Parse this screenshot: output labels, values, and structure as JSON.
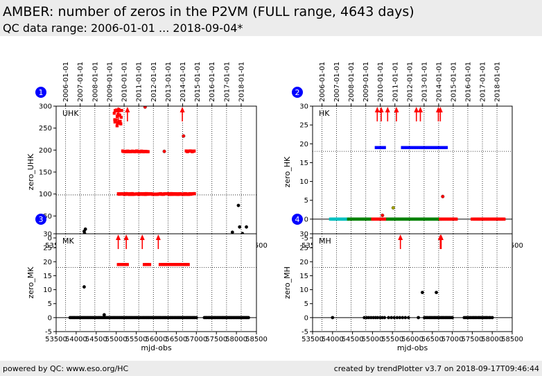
{
  "header": {
    "title": "AMBER: number of zeros in the P2VM (FULL range, 4643 days)",
    "subtitle": "QC data range: 2006-01-01 ... 2018-09-04*"
  },
  "footer": {
    "left": "powered by QC: www.eso.org/HC",
    "right": "created by trendPlotter v3.7 on 2018-09-17T09:46:44"
  },
  "colors": {
    "black": "#000000",
    "red": "#ff0000",
    "blue": "#0000ff",
    "cyan": "#00c0c0",
    "green": "#008000",
    "olive": "#a0a000",
    "badge": "#0000ff"
  },
  "chart_data": [
    {
      "type": "scatter",
      "number": "1",
      "label": "UHK",
      "xlabel": "mjd-obs",
      "ylabel": "zero_UHK",
      "xlim": [
        53500,
        58500
      ],
      "ylim": [
        0,
        300
      ],
      "xticks": [
        53500,
        54000,
        54500,
        55000,
        55500,
        56000,
        56500,
        57000,
        57500,
        58000,
        58500
      ],
      "yticks": [
        0,
        50,
        100,
        150,
        200,
        250,
        300
      ],
      "top_ticks": [
        "2006-01-01",
        "2007-01-01",
        "2008-01-01",
        "2009-01-01",
        "2010-01-01",
        "2011-01-01",
        "2012-01-01",
        "2013-01-01",
        "2014-01-01",
        "2015-01-01",
        "2016-01-01",
        "2017-01-01",
        "2018-01-01"
      ],
      "top_tick_mjd": [
        53736,
        54101,
        54466,
        54832,
        55197,
        55562,
        55927,
        56293,
        56658,
        57023,
        57388,
        57754,
        58119
      ],
      "hline": 98,
      "segments": [
        {
          "color": "black",
          "x0": 53850,
          "x1": 56950,
          "y": 1,
          "count": 160,
          "jitter": 3
        },
        {
          "color": "black",
          "x0": 57550,
          "x1": 58420,
          "y": 1,
          "count": 50,
          "jitter": 3
        },
        {
          "color": "red",
          "x0": 55050,
          "x1": 56950,
          "y": 100,
          "count": 120,
          "jitter": 1
        },
        {
          "color": "red",
          "x0": 55160,
          "x1": 55800,
          "y": 197,
          "count": 40,
          "jitter": 1
        },
        {
          "color": "red",
          "x0": 56750,
          "x1": 56950,
          "y": 197,
          "count": 8,
          "jitter": 1
        },
        {
          "color": "red",
          "x0": 54950,
          "x1": 55130,
          "y": 275,
          "count": 20,
          "jitter": 20
        }
      ],
      "points": [
        {
          "x": 54200,
          "y": 15,
          "color": "black"
        },
        {
          "x": 54210,
          "y": 10,
          "color": "black"
        },
        {
          "x": 54230,
          "y": 20,
          "color": "black"
        },
        {
          "x": 57900,
          "y": 13,
          "color": "black"
        },
        {
          "x": 58050,
          "y": 74,
          "color": "black"
        },
        {
          "x": 58080,
          "y": 25,
          "color": "black"
        },
        {
          "x": 58250,
          "y": 25,
          "color": "black"
        },
        {
          "x": 58150,
          "y": 10,
          "color": "black"
        },
        {
          "x": 55720,
          "y": 298,
          "color": "red"
        },
        {
          "x": 56680,
          "y": 232,
          "color": "red"
        },
        {
          "x": 56200,
          "y": 197,
          "color": "red"
        }
      ],
      "arrows": [
        55050,
        55280,
        56650
      ]
    },
    {
      "type": "scatter",
      "number": "2",
      "label": "HK",
      "xlabel": "mjd-obs",
      "ylabel": "zero_HK",
      "xlim": [
        53500,
        58500
      ],
      "ylim": [
        -5,
        30
      ],
      "xticks": [
        53500,
        54000,
        54500,
        55000,
        55500,
        56000,
        56500,
        57000,
        57500,
        58000,
        58500
      ],
      "yticks": [
        -5,
        0,
        5,
        10,
        15,
        20,
        25,
        30
      ],
      "top_ticks": [
        "2006-01-01",
        "2007-01-01",
        "2008-01-01",
        "2009-01-01",
        "2010-01-01",
        "2011-01-01",
        "2012-01-01",
        "2013-01-01",
        "2014-01-01",
        "2015-01-01",
        "2016-01-01",
        "2017-01-01",
        "2018-01-01"
      ],
      "top_tick_mjd": [
        53736,
        54101,
        54466,
        54832,
        55197,
        55562,
        55927,
        56293,
        56658,
        57023,
        57388,
        57754,
        58119
      ],
      "hline": 18,
      "segments": [
        {
          "color": "cyan",
          "x0": 53950,
          "x1": 54400,
          "y": 0,
          "count": 30,
          "jitter": 0
        },
        {
          "color": "green",
          "x0": 54400,
          "x1": 55000,
          "y": 0,
          "count": 25,
          "jitter": 0
        },
        {
          "color": "green",
          "x0": 55300,
          "x1": 56700,
          "y": 0,
          "count": 70,
          "jitter": 0
        },
        {
          "color": "red",
          "x0": 55000,
          "x1": 55300,
          "y": 0,
          "count": 15,
          "jitter": 0
        },
        {
          "color": "red",
          "x0": 56700,
          "x1": 57100,
          "y": 0,
          "count": 20,
          "jitter": 0
        },
        {
          "color": "red",
          "x0": 57500,
          "x1": 58300,
          "y": 0,
          "count": 40,
          "jitter": 0
        },
        {
          "color": "blue",
          "x0": 55100,
          "x1": 55300,
          "y": 19,
          "count": 8,
          "jitter": 0
        },
        {
          "color": "blue",
          "x0": 55750,
          "x1": 56850,
          "y": 19,
          "count": 20,
          "jitter": 0
        }
      ],
      "points": [
        {
          "x": 55520,
          "y": 3,
          "color": "olive"
        },
        {
          "x": 56760,
          "y": 6,
          "color": "red"
        },
        {
          "x": 55250,
          "y": 1,
          "color": "red"
        }
      ],
      "arrows": [
        55120,
        55220,
        55380,
        55600,
        56100,
        56200,
        56650,
        56700
      ]
    },
    {
      "type": "scatter",
      "number": "3",
      "label": "MK",
      "xlabel": "mjd-obs",
      "ylabel": "zero_MK",
      "xlim": [
        53500,
        58500
      ],
      "ylim": [
        -5,
        30
      ],
      "xticks": [
        53500,
        54000,
        54500,
        55000,
        55500,
        56000,
        56500,
        57000,
        57500,
        58000,
        58500
      ],
      "yticks": [
        -5,
        0,
        5,
        10,
        15,
        20,
        25,
        30
      ],
      "top_ticks": [],
      "top_tick_mjd": [],
      "hline": 18,
      "segments": [
        {
          "color": "black",
          "x0": 53850,
          "x1": 57000,
          "y": 0,
          "count": 120,
          "jitter": 0
        },
        {
          "color": "black",
          "x0": 57200,
          "x1": 58300,
          "y": 0,
          "count": 50,
          "jitter": 0
        },
        {
          "color": "red",
          "x0": 55050,
          "x1": 55280,
          "y": 19,
          "count": 8,
          "jitter": 0
        },
        {
          "color": "red",
          "x0": 55700,
          "x1": 55830,
          "y": 19,
          "count": 5,
          "jitter": 0
        },
        {
          "color": "red",
          "x0": 56100,
          "x1": 56800,
          "y": 19,
          "count": 30,
          "jitter": 0
        }
      ],
      "points": [
        {
          "x": 54200,
          "y": 11,
          "color": "black"
        },
        {
          "x": 54700,
          "y": 1,
          "color": "black"
        }
      ],
      "arrows": [
        55050,
        55250,
        55650,
        56050
      ]
    },
    {
      "type": "scatter",
      "number": "4",
      "label": "MH",
      "xlabel": "mjd-obs",
      "ylabel": "zero_MH",
      "xlim": [
        53500,
        58500
      ],
      "ylim": [
        -5,
        30
      ],
      "xticks": [
        53500,
        54000,
        54500,
        55000,
        55500,
        56000,
        56500,
        57000,
        57500,
        58000,
        58500
      ],
      "yticks": [
        -5,
        0,
        5,
        10,
        15,
        20,
        25,
        30
      ],
      "top_ticks": [],
      "top_tick_mjd": [],
      "hline": 18,
      "segments": [
        {
          "color": "black",
          "x0": 54800,
          "x1": 55300,
          "y": 0,
          "count": 10,
          "jitter": 0
        },
        {
          "color": "black",
          "x0": 55400,
          "x1": 55900,
          "y": 0,
          "count": 8,
          "jitter": 0
        },
        {
          "color": "black",
          "x0": 56300,
          "x1": 57000,
          "y": 0,
          "count": 25,
          "jitter": 0
        },
        {
          "color": "black",
          "x0": 57300,
          "x1": 57950,
          "y": 0,
          "count": 20,
          "jitter": 0
        }
      ],
      "points": [
        {
          "x": 54000,
          "y": 0,
          "color": "black"
        },
        {
          "x": 56150,
          "y": 0,
          "color": "black"
        },
        {
          "x": 58000,
          "y": 0,
          "color": "black"
        },
        {
          "x": 56250,
          "y": 9,
          "color": "black"
        },
        {
          "x": 56600,
          "y": 9,
          "color": "black"
        }
      ],
      "arrows": [
        55700,
        56700,
        56720
      ]
    }
  ]
}
